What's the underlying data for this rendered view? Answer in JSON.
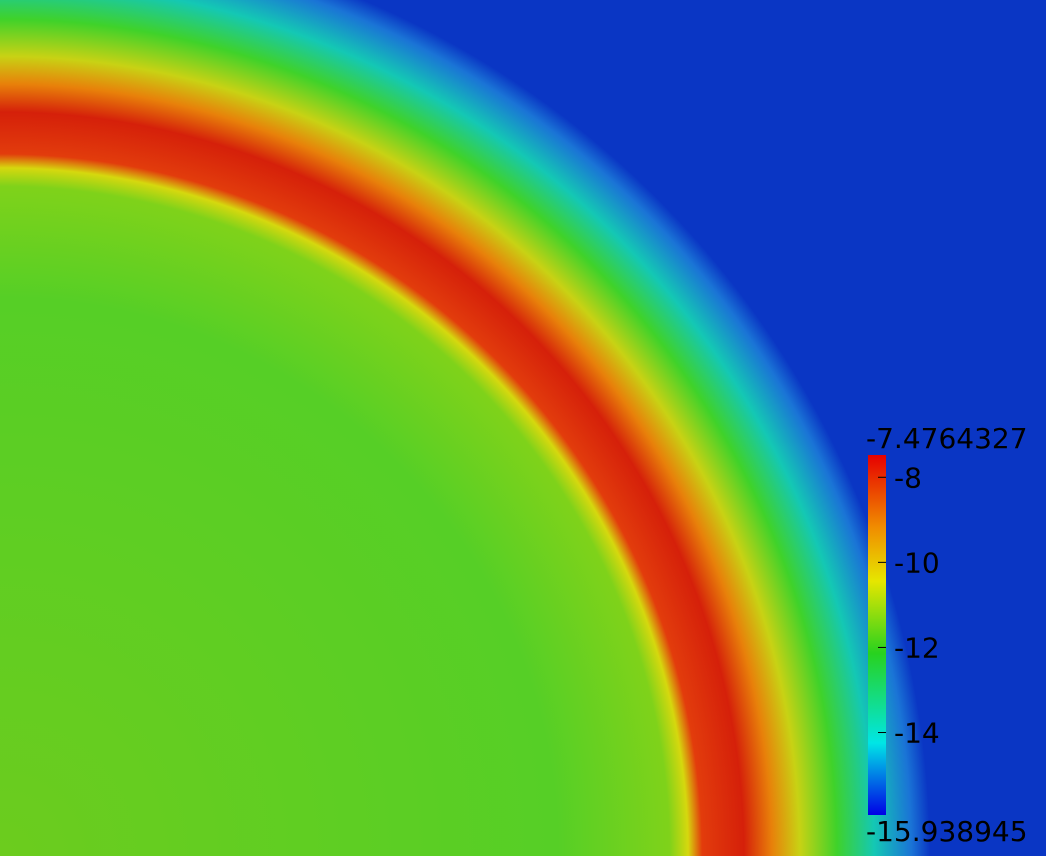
{
  "colorbar": {
    "max": -7.4764327,
    "min": -15.938945,
    "ticks": [
      -8,
      -10,
      -12,
      -14
    ]
  }
}
